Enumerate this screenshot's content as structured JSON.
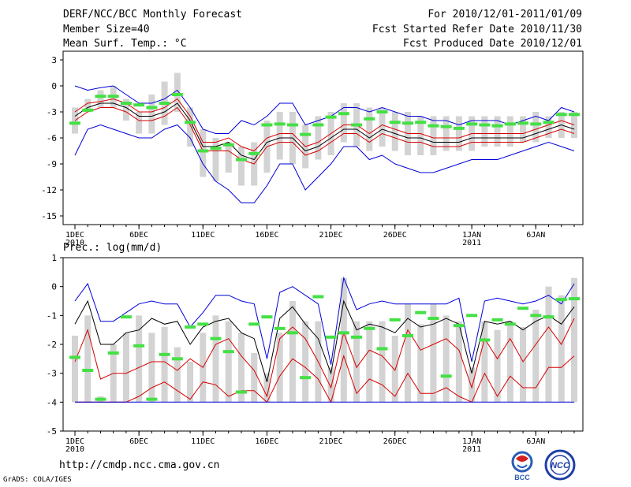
{
  "header": {
    "left": [
      "DERF/NCC/BCC Monthly Forecast",
      "Member Size=40",
      "Mean Surf. Temp.: °C"
    ],
    "right": [
      "For 2010/12/01-2011/01/09",
      "Fcst Started Refer Date 2010/11/30",
      "Fcst Produced Date 2010/12/01"
    ]
  },
  "footer": {
    "url": "http://cmdp.ncc.cma.gov.cn",
    "credit": "GrADS: COLA/IGES",
    "logo1_text": "BCC",
    "logo2_text": "NCC"
  },
  "chart_data": [
    {
      "type": "line",
      "title": "Mean Surf. Temp.: °C",
      "ylim": [
        -16,
        4
      ],
      "yticks": [
        3,
        0,
        -3,
        -6,
        -9,
        -12,
        -15
      ],
      "x_days": 40,
      "xtick_labels": [
        {
          "day": 1,
          "label": "1DEC",
          "sub": "2010"
        },
        {
          "day": 6,
          "label": "6DEC"
        },
        {
          "day": 11,
          "label": "11DEC"
        },
        {
          "day": 16,
          "label": "16DEC"
        },
        {
          "day": 21,
          "label": "21DEC"
        },
        {
          "day": 26,
          "label": "26DEC"
        },
        {
          "day": 32,
          "label": "1JAN",
          "sub": "2011"
        },
        {
          "day": 37,
          "label": "6JAN"
        }
      ],
      "series": [
        {
          "name": "max",
          "color": "#0000d8",
          "values": [
            0.0,
            -0.5,
            -0.2,
            0.0,
            -1.0,
            -2.0,
            -2.0,
            -1.5,
            -0.5,
            -2.5,
            -5.0,
            -5.5,
            -5.5,
            -4.0,
            -4.5,
            -3.5,
            -2.0,
            -2.0,
            -4.5,
            -4.0,
            -3.5,
            -2.5,
            -2.5,
            -3.0,
            -2.5,
            -3.0,
            -3.5,
            -3.5,
            -4.0,
            -4.0,
            -4.5,
            -4.0,
            -4.0,
            -4.0,
            -4.5,
            -4.0,
            -3.5,
            -4.0,
            -2.5,
            -3.0
          ]
        },
        {
          "name": "upper",
          "color": "#d80000",
          "values": [
            -3.0,
            -2.0,
            -1.8,
            -1.5,
            -2.0,
            -3.0,
            -3.0,
            -2.5,
            -1.5,
            -3.5,
            -6.5,
            -6.5,
            -6.0,
            -7.0,
            -7.5,
            -6.0,
            -5.5,
            -5.5,
            -7.0,
            -6.5,
            -5.5,
            -4.5,
            -4.5,
            -5.5,
            -4.5,
            -5.0,
            -5.5,
            -5.5,
            -6.0,
            -6.0,
            -6.0,
            -5.5,
            -5.5,
            -5.5,
            -5.5,
            -5.5,
            -5.0,
            -4.5,
            -4.0,
            -4.5
          ]
        },
        {
          "name": "mean",
          "color": "#000000",
          "values": [
            -3.5,
            -2.5,
            -2.0,
            -2.0,
            -2.5,
            -3.5,
            -3.5,
            -3.0,
            -2.0,
            -4.0,
            -7.0,
            -7.0,
            -6.5,
            -8.0,
            -8.5,
            -6.5,
            -6.0,
            -6.0,
            -7.5,
            -7.0,
            -6.0,
            -5.0,
            -5.0,
            -6.0,
            -5.0,
            -5.5,
            -6.0,
            -6.0,
            -6.5,
            -6.5,
            -6.5,
            -6.0,
            -6.0,
            -6.0,
            -6.0,
            -6.0,
            -5.5,
            -5.0,
            -4.5,
            -5.0
          ]
        },
        {
          "name": "lower",
          "color": "#d80000",
          "values": [
            -4.0,
            -3.0,
            -2.5,
            -2.5,
            -3.0,
            -4.0,
            -4.0,
            -3.5,
            -2.5,
            -4.5,
            -7.5,
            -7.5,
            -7.5,
            -8.5,
            -9.0,
            -7.0,
            -6.5,
            -6.5,
            -8.0,
            -7.5,
            -6.5,
            -5.5,
            -5.5,
            -6.5,
            -5.5,
            -6.0,
            -6.5,
            -6.5,
            -7.0,
            -7.0,
            -7.0,
            -6.5,
            -6.5,
            -6.5,
            -6.5,
            -6.5,
            -6.0,
            -5.5,
            -5.0,
            -5.5
          ]
        },
        {
          "name": "min",
          "color": "#0000d8",
          "values": [
            -8.0,
            -5.0,
            -4.5,
            -5.0,
            -5.5,
            -6.0,
            -6.0,
            -5.0,
            -4.5,
            -6.0,
            -9.0,
            -11.0,
            -12.0,
            -13.5,
            -13.5,
            -11.5,
            -9.0,
            -9.0,
            -12.0,
            -10.5,
            -9.0,
            -7.0,
            -7.0,
            -8.5,
            -8.0,
            -9.0,
            -9.5,
            -10.0,
            -10.0,
            -9.5,
            -9.0,
            -8.5,
            -8.5,
            -8.5,
            -8.0,
            -7.5,
            -7.0,
            -6.5,
            -7.0,
            -7.5
          ]
        }
      ],
      "bars": [
        [
          -5.5,
          -2.5
        ],
        [
          -3.0,
          -1.5
        ],
        [
          -2.5,
          -0.5
        ],
        [
          -2.5,
          0.0
        ],
        [
          -4.0,
          -1.5
        ],
        [
          -5.5,
          -3.0
        ],
        [
          -5.5,
          -1.0
        ],
        [
          -4.5,
          0.5
        ],
        [
          -3.0,
          1.5
        ],
        [
          -7.0,
          -2.5
        ],
        [
          -10.5,
          -5.0
        ],
        [
          -11.0,
          -6.0
        ],
        [
          -10.0,
          -6.5
        ],
        [
          -11.5,
          -7.0
        ],
        [
          -11.5,
          -6.5
        ],
        [
          -10.0,
          -4.0
        ],
        [
          -8.5,
          -3.0
        ],
        [
          -9.0,
          -3.0
        ],
        [
          -9.5,
          -4.5
        ],
        [
          -8.5,
          -3.5
        ],
        [
          -8.0,
          -3.0
        ],
        [
          -6.5,
          -2.0
        ],
        [
          -7.0,
          -2.0
        ],
        [
          -7.5,
          -2.5
        ],
        [
          -7.0,
          -2.5
        ],
        [
          -7.5,
          -3.0
        ],
        [
          -8.0,
          -3.0
        ],
        [
          -8.0,
          -3.5
        ],
        [
          -8.0,
          -3.5
        ],
        [
          -7.5,
          -3.5
        ],
        [
          -7.5,
          -3.5
        ],
        [
          -7.5,
          -3.5
        ],
        [
          -7.0,
          -3.5
        ],
        [
          -7.0,
          -3.5
        ],
        [
          -7.0,
          -3.5
        ],
        [
          -6.5,
          -3.5
        ],
        [
          -6.5,
          -3.0
        ],
        [
          -6.0,
          -3.5
        ],
        [
          -6.0,
          -3.0
        ],
        [
          -6.0,
          -3.0
        ]
      ],
      "obs": [
        -4.3,
        -2.8,
        -1.2,
        -1.2,
        -2.0,
        -2.2,
        -2.5,
        -2.0,
        -1.0,
        -4.2,
        -7.5,
        -7.2,
        -6.8,
        -8.5,
        -7.8,
        -4.5,
        -4.4,
        -4.5,
        -5.6,
        -4.5,
        -3.6,
        -3.2,
        -4.5,
        -3.8,
        -3.0,
        -4.2,
        -4.3,
        -4.2,
        -4.6,
        -4.7,
        -4.9,
        -4.4,
        -4.5,
        -4.6,
        -4.4,
        -4.3,
        -4.4,
        -4.2,
        -3.3,
        -3.3
      ]
    },
    {
      "type": "line",
      "title": "Prec.: log(mm/d)",
      "ylim": [
        -5,
        1
      ],
      "yticks": [
        1,
        0,
        -1,
        -2,
        -3,
        -4,
        -5
      ],
      "x_days": 40,
      "xtick_labels": [
        {
          "day": 1,
          "label": "1DEC",
          "sub": "2010"
        },
        {
          "day": 6,
          "label": "6DEC"
        },
        {
          "day": 11,
          "label": "11DEC"
        },
        {
          "day": 16,
          "label": "16DEC"
        },
        {
          "day": 21,
          "label": "21DEC"
        },
        {
          "day": 26,
          "label": "26DEC"
        },
        {
          "day": 32,
          "label": "1JAN",
          "sub": "2011"
        },
        {
          "day": 37,
          "label": "6JAN"
        }
      ],
      "series": [
        {
          "name": "max",
          "color": "#0000d8",
          "values": [
            -0.5,
            0.1,
            -1.2,
            -1.2,
            -0.9,
            -0.6,
            -0.5,
            -0.6,
            -0.6,
            -1.4,
            -0.9,
            -0.3,
            -0.3,
            -0.5,
            -0.6,
            -2.5,
            -0.2,
            0.0,
            -0.3,
            -0.6,
            -2.7,
            0.3,
            -0.8,
            -0.6,
            -0.5,
            -0.6,
            -0.6,
            -0.6,
            -0.6,
            -0.6,
            -0.4,
            -2.6,
            -0.5,
            -0.4,
            -0.5,
            -0.6,
            -0.5,
            -0.3,
            -0.6,
            0.1
          ]
        },
        {
          "name": "upper",
          "color": "#000000",
          "values": [
            -1.3,
            -0.5,
            -2.0,
            -2.0,
            -1.6,
            -1.5,
            -1.1,
            -1.3,
            -1.2,
            -2.0,
            -1.4,
            -1.2,
            -1.1,
            -1.6,
            -1.8,
            -3.3,
            -1.1,
            -0.7,
            -1.3,
            -1.8,
            -3.0,
            -0.5,
            -1.5,
            -1.3,
            -1.4,
            -1.6,
            -1.1,
            -1.4,
            -1.3,
            -1.1,
            -1.3,
            -3.0,
            -1.2,
            -1.3,
            -1.2,
            -1.5,
            -1.2,
            -1.0,
            -1.3,
            -0.7
          ]
        },
        {
          "name": "mid",
          "color": "#d80000",
          "values": [
            -2.6,
            -1.5,
            -3.2,
            -3.0,
            -3.0,
            -2.8,
            -2.6,
            -2.6,
            -2.9,
            -2.5,
            -2.8,
            -2.0,
            -1.8,
            -2.4,
            -2.9,
            -3.8,
            -1.8,
            -1.4,
            -1.8,
            -2.6,
            -3.5,
            -1.6,
            -2.8,
            -2.2,
            -2.4,
            -2.9,
            -1.5,
            -2.2,
            -2.0,
            -1.8,
            -2.2,
            -3.5,
            -1.8,
            -2.5,
            -1.8,
            -2.6,
            -2.0,
            -1.4,
            -2.0,
            -1.1
          ]
        },
        {
          "name": "lower",
          "color": "#d80000",
          "values": [
            -4.0,
            -4.0,
            -4.0,
            -4.0,
            -4.0,
            -3.8,
            -3.5,
            -3.3,
            -3.6,
            -3.9,
            -3.3,
            -3.4,
            -3.8,
            -3.6,
            -3.6,
            -4.0,
            -3.1,
            -2.5,
            -2.8,
            -3.2,
            -4.0,
            -2.4,
            -3.7,
            -3.2,
            -3.4,
            -3.8,
            -3.0,
            -3.7,
            -3.7,
            -3.5,
            -3.8,
            -4.0,
            -3.0,
            -3.8,
            -3.1,
            -3.5,
            -3.5,
            -2.8,
            -2.8,
            -2.4
          ]
        },
        {
          "name": "min",
          "color": "#0000d8",
          "values": [
            -4.0,
            -4.0,
            -4.0,
            -4.0,
            -4.0,
            -4.0,
            -4.0,
            -4.0,
            -4.0,
            -4.0,
            -4.0,
            -4.0,
            -4.0,
            -4.0,
            -4.0,
            -4.0,
            -4.0,
            -4.0,
            -4.0,
            -4.0,
            -4.0,
            -4.0,
            -4.0,
            -4.0,
            -4.0,
            -4.0,
            -4.0,
            -4.0,
            -4.0,
            -4.0,
            -4.0,
            -4.0,
            -4.0,
            -4.0,
            -4.0,
            -4.0,
            -4.0,
            -4.0,
            -4.0,
            -4.0
          ]
        }
      ],
      "bars": [
        [
          -4.0,
          -1.7
        ],
        [
          -4.0,
          -1.0
        ],
        [
          -4.0,
          -3.8
        ],
        [
          -4.0,
          -2.0
        ],
        [
          -4.0,
          -1.6
        ],
        [
          -4.0,
          -1.0
        ],
        [
          -4.0,
          -1.6
        ],
        [
          -4.0,
          -1.4
        ],
        [
          -4.0,
          -2.1
        ],
        [
          -4.0,
          -2.6
        ],
        [
          -4.0,
          -1.6
        ],
        [
          -4.0,
          -1.0
        ],
        [
          -4.0,
          -1.2
        ],
        [
          -4.0,
          -1.6
        ],
        [
          -4.0,
          -2.3
        ],
        [
          -4.0,
          -3.0
        ],
        [
          -4.0,
          -1.6
        ],
        [
          -4.0,
          -0.5
        ],
        [
          -4.0,
          -1.2
        ],
        [
          -4.0,
          -1.2
        ],
        [
          -4.0,
          -2.8
        ],
        [
          -4.0,
          0.3
        ],
        [
          -4.0,
          -1.2
        ],
        [
          -4.0,
          -1.2
        ],
        [
          -4.0,
          -1.2
        ],
        [
          -4.0,
          -1.7
        ],
        [
          -4.0,
          -0.6
        ],
        [
          -4.0,
          -1.3
        ],
        [
          -4.0,
          -0.6
        ],
        [
          -4.0,
          -1.0
        ],
        [
          -4.0,
          -1.2
        ],
        [
          -4.0,
          -2.8
        ],
        [
          -4.0,
          -1.2
        ],
        [
          -4.0,
          -1.5
        ],
        [
          -4.0,
          -1.2
        ],
        [
          -4.0,
          -1.4
        ],
        [
          -4.0,
          -0.8
        ],
        [
          -4.0,
          0.0
        ],
        [
          -4.0,
          -0.3
        ],
        [
          -4.0,
          0.3
        ]
      ],
      "obs": [
        -2.45,
        -2.9,
        -3.9,
        -2.3,
        -1.05,
        -2.05,
        -3.9,
        -2.35,
        -2.5,
        -1.4,
        -1.3,
        -1.8,
        -2.25,
        -3.65,
        -1.3,
        -1.05,
        -1.45,
        -1.6,
        -3.15,
        -0.35,
        -1.75,
        -1.6,
        -1.75,
        -1.45,
        -2.15,
        -1.15,
        -1.7,
        -0.9,
        -1.1,
        -3.1,
        -1.35,
        -1.0,
        -1.85,
        -1.15,
        -1.3,
        -0.75,
        -1.0,
        -1.05,
        -0.45,
        -0.42
      ]
    }
  ]
}
